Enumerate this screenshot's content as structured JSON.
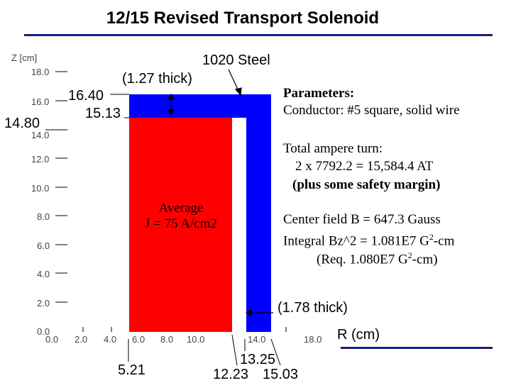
{
  "slide": {
    "title": "12/15 Revised Transport Solenoid"
  },
  "colors": {
    "steel": "#0000ff",
    "conductor": "#ff0000",
    "rule": "#1a1a8c"
  },
  "axes": {
    "z_label": "Z [cm]",
    "r_label": "R (cm)",
    "z_ticks": [
      "18.0",
      "16.0",
      "14.0",
      "12.0",
      "10.0",
      "8.0",
      "6.0",
      "4.0",
      "2.0",
      "0.0"
    ],
    "r_ticks": [
      "0.0",
      "2.0",
      "4.0",
      "6.0",
      "8.0",
      "10.0",
      "14.0",
      "18.0"
    ]
  },
  "annotations": {
    "steel_label": "1020 Steel",
    "top_thickness": "(1.27 thick)",
    "side_thickness": "(1.78 thick)",
    "z_outer": "16.40",
    "z_inner": "15.13",
    "z_coil": "14.80",
    "r_inner": "5.21",
    "r_steel_inner": "13.25",
    "r_coil_outer": "12.23",
    "r_steel_outer": "15.03",
    "current_density_line1": "Average",
    "current_density_line2": "J = 75 A/cm2"
  },
  "parameters": {
    "heading": "Parameters:",
    "conductor": "Conductor: #5 square, solid wire",
    "ampere_heading": "Total ampere turn:",
    "ampere_value": "2 x 7792.2 = 15,584.4 AT",
    "safety": "(plus some safety margin)",
    "center_field": "Center field  B = 647.3 Gauss",
    "integral_prefix": "Integral  Bz^2 = 1.081E7 G",
    "integral_sup": "2",
    "integral_suffix": "-cm",
    "req_prefix": "(Req. 1.080E7 G",
    "req_sup": "2",
    "req_suffix": "-cm)"
  }
}
